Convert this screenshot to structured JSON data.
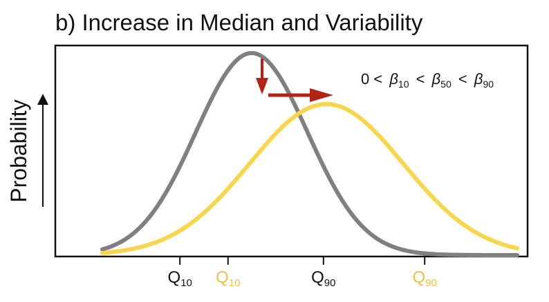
{
  "chart_data": {
    "type": "line",
    "title": "b) Increase in Median and Variability",
    "ylabel": "Probability",
    "xlabel": "",
    "annotation": {
      "lead": "0 <",
      "b1_sym": "β",
      "b1_sub": "10",
      "lt1": "<",
      "b2_sym": "β",
      "b2_sub": "50",
      "lt2": "<",
      "b3_sym": "β",
      "b3_sub": "90"
    },
    "xlim": [
      0,
      10
    ],
    "ylim": [
      0,
      1
    ],
    "series": [
      {
        "color": "#808080",
        "mean": 3.6,
        "sd": 1.35,
        "peak": 0.99
      },
      {
        "color": "#f8d54a",
        "mean": 5.4,
        "sd": 1.85,
        "peak": 0.74
      }
    ],
    "quantile_ticks": [
      {
        "x": 1.87,
        "main": "Q",
        "sub": "10",
        "color": "#111111"
      },
      {
        "x": 3.03,
        "main": "Q",
        "sub": "10",
        "color": "#f0c040"
      },
      {
        "x": 5.33,
        "main": "Q",
        "sub": "90",
        "color": "#111111"
      },
      {
        "x": 7.77,
        "main": "Q",
        "sub": "90",
        "color": "#f0c040"
      }
    ],
    "arrows": {
      "color": "#b22418"
    }
  }
}
